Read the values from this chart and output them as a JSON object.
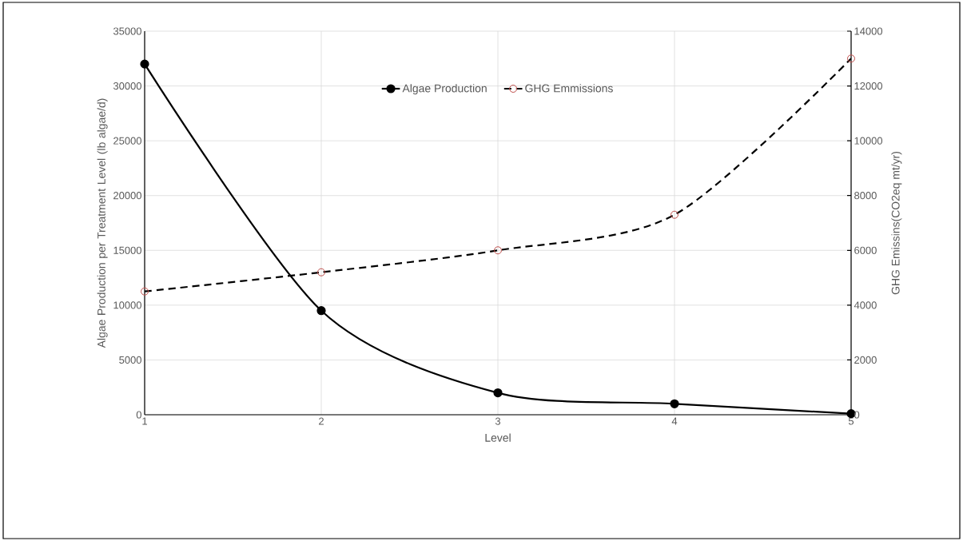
{
  "chart_data": {
    "type": "line",
    "xlabel": "Level",
    "ylabel": "Algae Production per Treatment Level (lb algae/d)",
    "y2label": "GHG Emissins(CO2eq mt/yr)",
    "x": [
      1,
      2,
      3,
      4,
      5
    ],
    "xlim": [
      1,
      5
    ],
    "xticks": [
      1,
      2,
      3,
      4,
      5
    ],
    "ylim": [
      0,
      35000
    ],
    "yticks": [
      0,
      5000,
      10000,
      15000,
      20000,
      25000,
      30000,
      35000
    ],
    "y2lim": [
      0,
      14000
    ],
    "y2ticks": [
      0,
      2000,
      4000,
      6000,
      8000,
      10000,
      12000,
      14000
    ],
    "series": [
      {
        "name": "Algae Production",
        "color": "#000000",
        "values": [
          32000,
          9500,
          2000,
          1000,
          100
        ],
        "marker": "circle",
        "line_style": "solid"
      },
      {
        "name": "GHG Emmissions",
        "color": "#c0504d",
        "values": [
          4500,
          5200,
          6000,
          7300,
          13000
        ],
        "marker": "circle",
        "line_style": "dashed",
        "axis": "y2"
      }
    ],
    "grid": true,
    "legend": "top"
  }
}
